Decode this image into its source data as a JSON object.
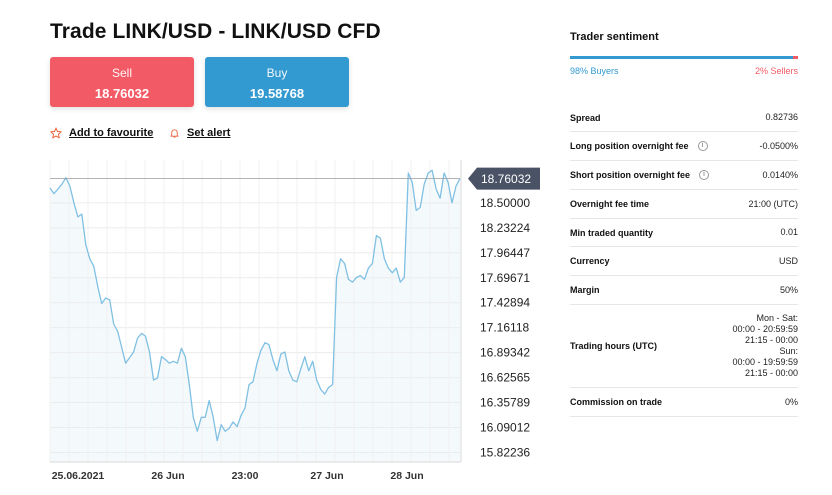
{
  "header": {
    "title": "Trade LINK/USD - LINK/USD CFD"
  },
  "trade": {
    "sell_label": "Sell",
    "sell_price": "18.76032",
    "buy_label": "Buy",
    "buy_price": "19.58768"
  },
  "actions": {
    "favourite": "Add to favourite",
    "alert": "Set alert"
  },
  "chart_data": {
    "type": "line",
    "current_price_label": "18.76032",
    "y_ticks": [
      "18.50000",
      "18.23224",
      "17.96447",
      "17.69671",
      "17.42894",
      "17.16118",
      "16.89342",
      "16.62565",
      "16.35789",
      "16.09012",
      "15.82236"
    ],
    "x_ticks": [
      "25.06.2021",
      "26 Jun",
      "23:00",
      "27 Jun",
      "28 Jun"
    ],
    "ylim": [
      15.72,
      18.96
    ],
    "grid": true,
    "series": [
      {
        "values": [
          18.66,
          18.6,
          18.65,
          18.7,
          18.77,
          18.68,
          18.5,
          18.35,
          18.38,
          18.05,
          17.9,
          17.82,
          17.6,
          17.42,
          17.48,
          17.46,
          17.2,
          17.12,
          16.95,
          16.78,
          16.84,
          16.9,
          17.05,
          17.1,
          17.07,
          16.9,
          16.6,
          16.62,
          16.85,
          16.82,
          16.78,
          16.8,
          16.78,
          16.94,
          16.85,
          16.55,
          16.2,
          16.05,
          16.2,
          16.2,
          16.38,
          16.2,
          15.95,
          16.12,
          16.05,
          16.08,
          16.15,
          16.1,
          16.22,
          16.3,
          16.55,
          16.58,
          16.78,
          16.92,
          17.0,
          16.98,
          16.82,
          16.7,
          16.88,
          16.9,
          16.7,
          16.6,
          16.58,
          16.72,
          16.85,
          16.7,
          16.8,
          16.6,
          16.5,
          16.45,
          16.52,
          16.55,
          17.7,
          17.9,
          17.85,
          17.68,
          17.65,
          17.7,
          17.72,
          17.68,
          17.8,
          17.85,
          18.15,
          18.12,
          17.9,
          17.8,
          17.75,
          17.8,
          17.65,
          17.7,
          18.82,
          18.72,
          18.42,
          18.45,
          18.7,
          18.82,
          18.85,
          18.65,
          18.55,
          18.82,
          18.72,
          18.5,
          18.68,
          18.76
        ]
      }
    ],
    "colors": {
      "line": "#7fc0e3",
      "area": "#f4f9fc",
      "price_tag": "#4a5265"
    }
  },
  "sentiment": {
    "title": "Trader sentiment",
    "buyers": "98% Buyers",
    "sellers": "2% Sellers",
    "buy_fraction": 0.98
  },
  "specs": [
    {
      "label": "Spread",
      "value": "0.82736"
    },
    {
      "label": "Long position overnight fee",
      "value": "-0.0500%",
      "info": true
    },
    {
      "label": "Short position overnight fee",
      "value": "0.0140%",
      "info": true
    },
    {
      "label": "Overnight fee time",
      "value": "21:00 (UTC)"
    },
    {
      "label": "Min traded quantity",
      "value": "0.01"
    },
    {
      "label": "Currency",
      "value": "USD"
    },
    {
      "label": "Margin",
      "value": "50%"
    },
    {
      "label": "Trading hours (UTC)",
      "value_lines": [
        "Mon - Sat:",
        "00:00 - 20:59:59",
        "21:15 - 00:00",
        "Sun:",
        "00:00 - 19:59:59",
        "21:15 - 00:00"
      ]
    },
    {
      "label": "Commission on trade",
      "value": "0%"
    }
  ]
}
